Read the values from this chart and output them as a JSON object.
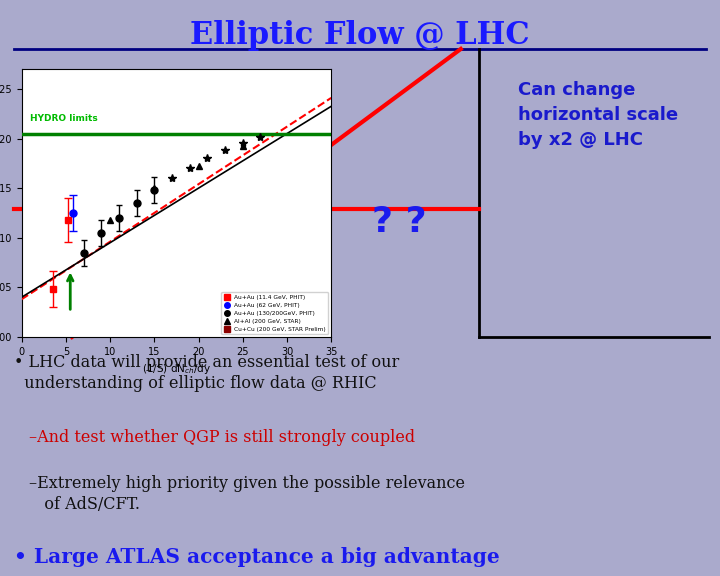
{
  "title": "Elliptic Flow @ LHC",
  "title_color": "#1a1aff",
  "bg_color": "#aaaacc",
  "line_sep_color": "#000080",
  "right_text": "Can change\nhorizontal scale\nby x2 @ LHC",
  "right_text_color": "#1a1acc",
  "question_marks": "? ?",
  "qm_color": "#1a1aee",
  "bullet1": " LHC data will provide an essential test of our\n  understanding of elliptic flow data @ RHIC",
  "bullet1_color": "#111111",
  "bullet2": "–And test whether QGP is still strongly coupled",
  "bullet2_color": "#cc0000",
  "bullet3": "–Extremely high priority given the possible relevance\n   of AdS/CFT.",
  "bullet3_color": "#111111",
  "bullet4": " Large ATLAS acceptance a big advantage",
  "bullet4_color": "#1a1aee",
  "plot_bg": "#ffffff",
  "hydro_text": "HYDRO limits",
  "hydro_color": "#00bb00"
}
